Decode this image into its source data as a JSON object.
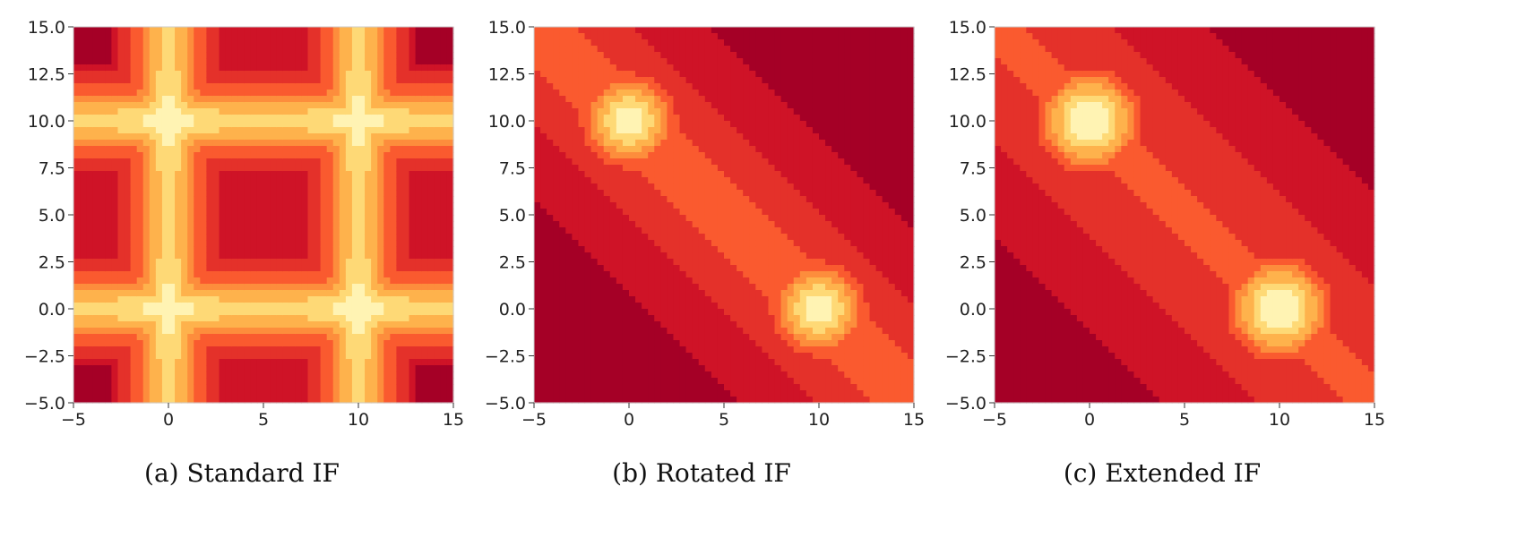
{
  "chart_data": [
    {
      "type": "heatmap",
      "caption": "(a) Standard IF",
      "xlim": [
        -5,
        15
      ],
      "ylim": [
        -5,
        15
      ],
      "xticks": [
        -5,
        0,
        5,
        10,
        15
      ],
      "yticks": [
        -5.0,
        -2.5,
        0.0,
        2.5,
        5.0,
        7.5,
        10.0,
        12.5,
        15.0
      ],
      "xtick_labels": [
        "−5",
        "0",
        "5",
        "10",
        "15"
      ],
      "ytick_labels": [
        "−5.0",
        "−2.5",
        "0.0",
        "2.5",
        "5.0",
        "7.5",
        "10.0",
        "12.5",
        "15.0"
      ],
      "clusters": [
        [
          0,
          10
        ],
        [
          10,
          0
        ]
      ],
      "pattern": "axis-aligned cross bands through each cluster"
    },
    {
      "type": "heatmap",
      "caption": "(b) Rotated IF",
      "xlim": [
        -5,
        15
      ],
      "ylim": [
        -5,
        15
      ],
      "xticks": [
        -5,
        0,
        5,
        10,
        15
      ],
      "yticks": [
        -5.0,
        -2.5,
        0.0,
        2.5,
        5.0,
        7.5,
        10.0,
        12.5,
        15.0
      ],
      "xtick_labels": [
        "−5",
        "0",
        "5",
        "10",
        "15"
      ],
      "ytick_labels": [
        "−5.0",
        "−2.5",
        "0.0",
        "2.5",
        "5.0",
        "7.5",
        "10.0",
        "12.5",
        "15.0"
      ],
      "clusters": [
        [
          0,
          10
        ],
        [
          10,
          0
        ]
      ],
      "pattern": "diagonal band connecting clusters"
    },
    {
      "type": "heatmap",
      "caption": "(c) Extended IF",
      "xlim": [
        -5,
        15
      ],
      "ylim": [
        -5,
        15
      ],
      "xticks": [
        -5,
        0,
        5,
        10,
        15
      ],
      "yticks": [
        -5.0,
        -2.5,
        0.0,
        2.5,
        5.0,
        7.5,
        10.0,
        12.5,
        15.0
      ],
      "xtick_labels": [
        "−5",
        "0",
        "5",
        "10",
        "15"
      ],
      "ytick_labels": [
        "−5.0",
        "−2.5",
        "0.0",
        "2.5",
        "5.0",
        "7.5",
        "10.0",
        "12.5",
        "15.0"
      ],
      "clusters": [
        [
          0,
          10
        ],
        [
          10,
          0
        ]
      ],
      "pattern": "diagonal band with rounded blobs around clusters"
    }
  ],
  "colors": {
    "level0": "#a50026",
    "level1": "#cf1327",
    "level2": "#e4312a",
    "level3": "#fa5a2f",
    "level4": "#fd8d3c",
    "level5": "#feb24c",
    "level6": "#fed976",
    "level7": "#fff3b3"
  }
}
